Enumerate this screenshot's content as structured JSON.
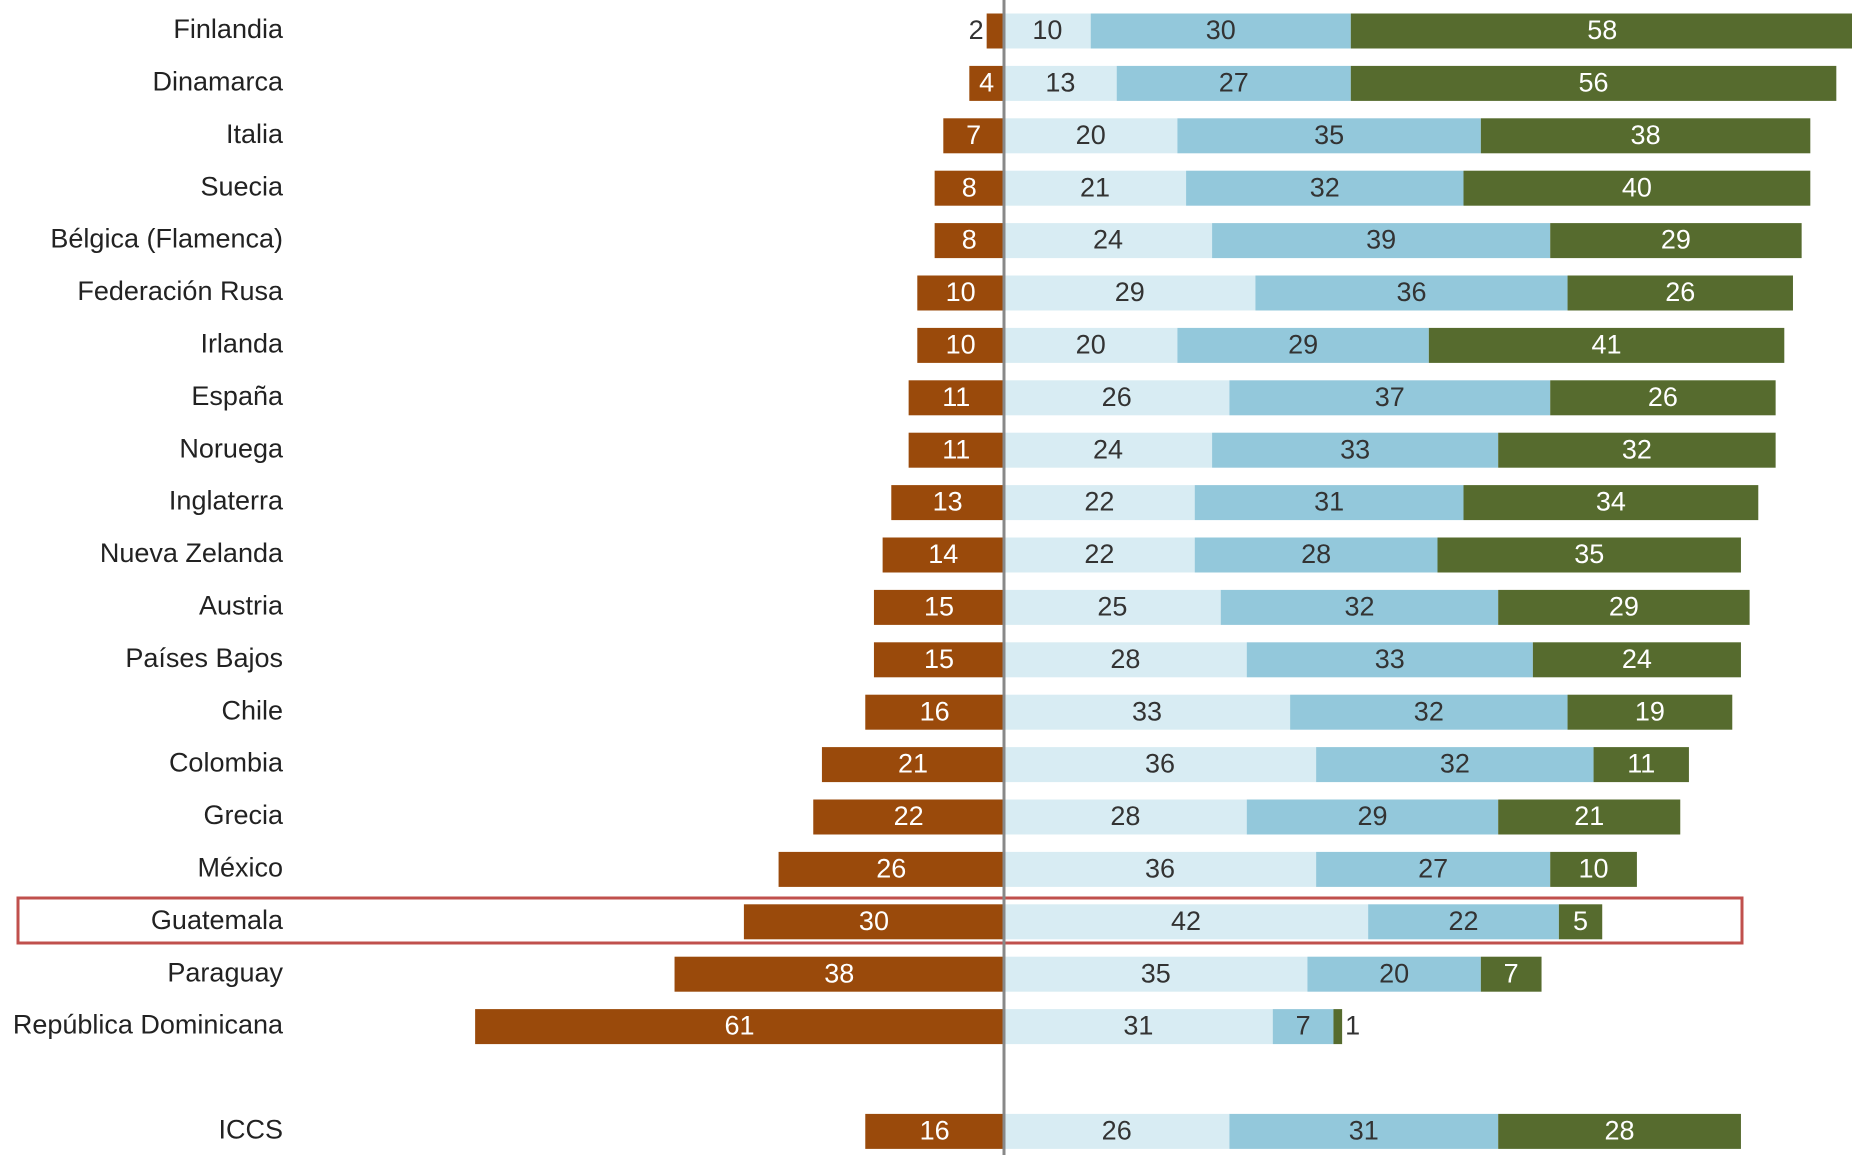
{
  "chart_data": {
    "type": "diverging-bar",
    "categories": [
      "Finlandia",
      "Dinamarca",
      "Italia",
      "Suecia",
      "Bélgica (Flamenca)",
      "Federación Rusa",
      "Irlanda",
      "España",
      "Noruega",
      "Inglaterra",
      "Nueva Zelanda",
      "Austria",
      "Países Bajos",
      "Chile",
      "Colombia",
      "Grecia",
      "México",
      "Guatemala",
      "Paraguay",
      "República Dominicana",
      "ICCS"
    ],
    "series": [
      {
        "color": "#9a4a0b",
        "direction": "left",
        "values": [
          2,
          4,
          7,
          8,
          8,
          10,
          10,
          11,
          11,
          13,
          14,
          15,
          15,
          16,
          21,
          22,
          26,
          30,
          38,
          61,
          16
        ]
      },
      {
        "color": "#d8ecf3",
        "values": [
          10,
          13,
          20,
          21,
          24,
          29,
          20,
          26,
          24,
          22,
          22,
          25,
          28,
          33,
          36,
          28,
          36,
          42,
          35,
          31,
          26
        ]
      },
      {
        "color": "#93c8db",
        "values": [
          30,
          27,
          35,
          32,
          39,
          36,
          29,
          37,
          33,
          31,
          28,
          32,
          33,
          32,
          32,
          29,
          27,
          22,
          20,
          7,
          31
        ]
      },
      {
        "color": "#566b2e",
        "values": [
          58,
          56,
          38,
          40,
          29,
          26,
          41,
          26,
          32,
          34,
          35,
          29,
          24,
          19,
          11,
          21,
          10,
          5,
          7,
          1,
          28
        ]
      }
    ]
  }
}
